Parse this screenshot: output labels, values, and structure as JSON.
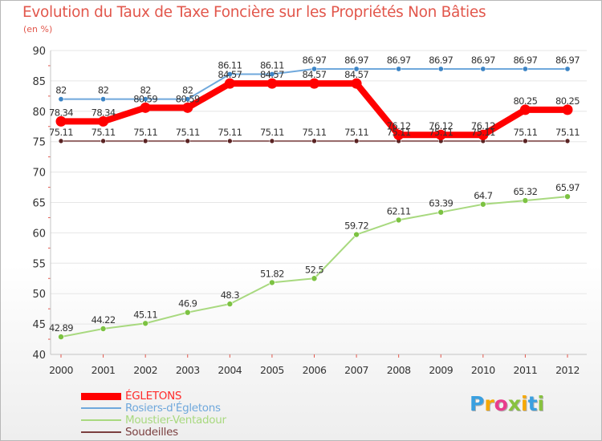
{
  "title": "Evolution du Taux de Taxe Foncière sur les Propriétés Non Bâties",
  "subtitle": "(en %)",
  "colors": {
    "title": "#e2574c",
    "axis": "#c4c4c4",
    "grid": "#e6e6e6",
    "tick_mark": "#e2574c"
  },
  "chart_data": {
    "type": "line",
    "x": [
      "2000",
      "2001",
      "2002",
      "2003",
      "2004",
      "2005",
      "2006",
      "2007",
      "2008",
      "2009",
      "2010",
      "2011",
      "2012"
    ],
    "ylim": [
      40,
      90
    ],
    "yticks": [
      40,
      45,
      50,
      55,
      60,
      65,
      70,
      75,
      80,
      85,
      90
    ],
    "grid": "horizontal",
    "legend_position": "bottom-left",
    "series": [
      {
        "name": "ÉGLETONS",
        "color": "#ff0000",
        "values": [
          78.34,
          78.34,
          80.59,
          80.59,
          84.57,
          84.57,
          84.57,
          84.57,
          76.12,
          76.12,
          76.12,
          80.25,
          80.25
        ],
        "labels": [
          "78.34",
          "78.34",
          "80.59",
          "80.59",
          "84.57",
          "84.57",
          "84.57",
          "84.57",
          "76.12",
          "76.12",
          "76.12",
          "80.25",
          "80.25"
        ]
      },
      {
        "name": "Rosiers-d'Égletons",
        "color": "#6fa8dc",
        "marker_color": "#3d85c6",
        "values": [
          82,
          82,
          82,
          82,
          86.11,
          86.11,
          86.97,
          86.97,
          86.97,
          86.97,
          86.97,
          86.97,
          86.97
        ],
        "labels": [
          "82",
          "82",
          "82",
          "82",
          "86.11",
          "86.11",
          "86.97",
          "86.97",
          "86.97",
          "86.97",
          "86.97",
          "86.97",
          "86.97"
        ]
      },
      {
        "name": "Moustier-Ventadour",
        "color": "#a8d97f",
        "marker_color": "#7cc242",
        "values": [
          42.89,
          44.22,
          45.11,
          46.9,
          48.3,
          51.82,
          52.5,
          59.72,
          62.11,
          63.39,
          64.7,
          65.32,
          65.97
        ],
        "labels": [
          "42.89",
          "44.22",
          "45.11",
          "46.9",
          "48.3",
          "51.82",
          "52.5",
          "59.72",
          "62.11",
          "63.39",
          "64.7",
          "65.32",
          "65.97"
        ]
      },
      {
        "name": "Soudeilles",
        "color": "#7b3f3f",
        "marker_color": "#5a2323",
        "values": [
          75.11,
          75.11,
          75.11,
          75.11,
          75.11,
          75.11,
          75.11,
          75.11,
          75.11,
          75.11,
          75.11,
          75.11,
          75.11
        ],
        "labels": [
          "75.11",
          "75.11",
          "75.11",
          "75.11",
          "75.11",
          "75.11",
          "75.11",
          "75.11",
          "75.11",
          "75.11",
          "75.11",
          "75.11",
          "75.11"
        ]
      }
    ]
  },
  "brand": {
    "letters": [
      "P",
      "r",
      "o",
      "x",
      "i",
      "t",
      "i"
    ],
    "colors": [
      "#3aa0e0",
      "#f7a800",
      "#e93c8c",
      "#88c23f",
      "#f7a800",
      "#3aa0e0",
      "#88c23f"
    ]
  }
}
